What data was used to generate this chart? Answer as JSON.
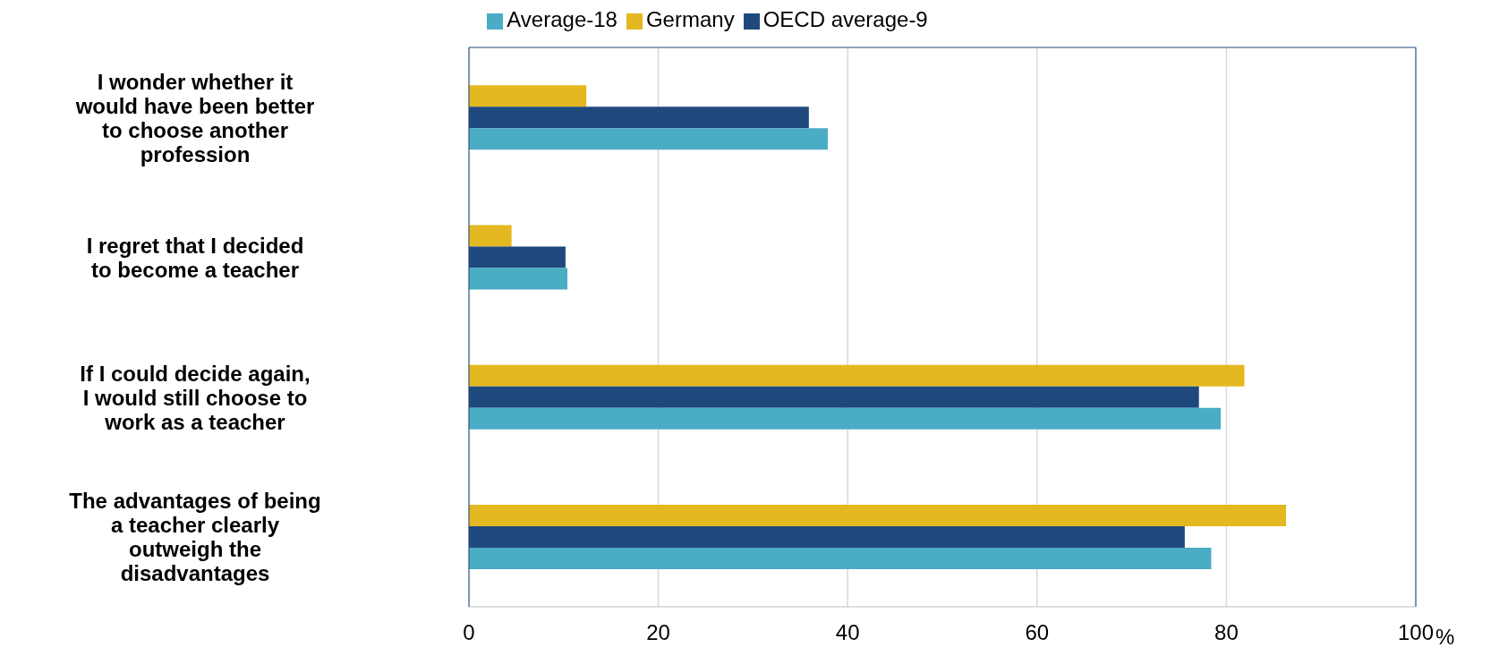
{
  "chart_data": {
    "type": "bar",
    "orientation": "horizontal",
    "categories": [
      "I wonder whether it would have been better to choose another profession",
      "I regret that I decided to become a teacher",
      "If I could decide again, I would still choose to work as a teacher",
      "The advantages of being a teacher clearly outweigh the disadvantages"
    ],
    "series": [
      {
        "name": "Germany",
        "color": "#e3b820",
        "values": [
          12.4,
          4.5,
          81.9,
          86.3
        ]
      },
      {
        "name": "OECD average-9",
        "color": "#1f497d",
        "values": [
          35.9,
          10.2,
          77.1,
          75.6
        ]
      },
      {
        "name": "Average-18",
        "color": "#4bacc6",
        "values": [
          37.9,
          10.4,
          79.4,
          78.4
        ]
      }
    ],
    "xlabel": "%",
    "xlim": [
      0,
      100
    ],
    "xticks": [
      0,
      20,
      40,
      60,
      80,
      100
    ],
    "grid": "x",
    "legend": "top"
  }
}
